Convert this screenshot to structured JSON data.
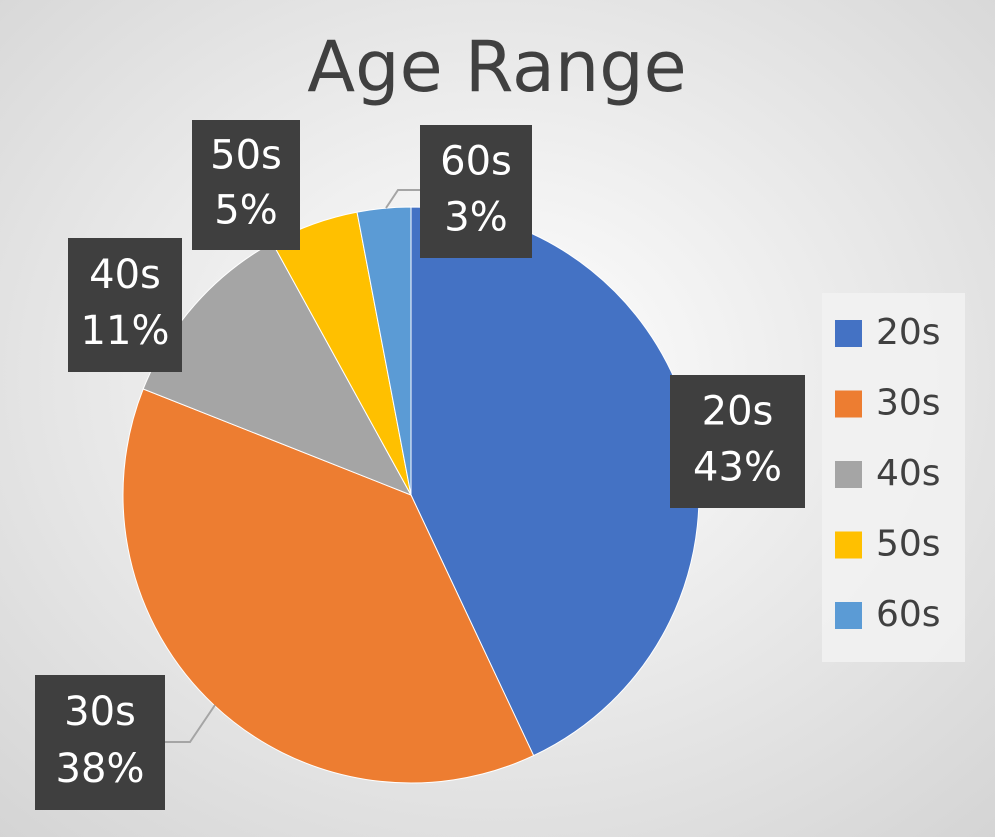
{
  "chart_data": {
    "type": "pie",
    "title": "Age Range",
    "categories": [
      "20s",
      "30s",
      "40s",
      "50s",
      "60s"
    ],
    "values": [
      43,
      38,
      11,
      5,
      3
    ],
    "value_labels": [
      "43%",
      "38%",
      "11%",
      "5%",
      "3%"
    ],
    "colors": [
      "#4472c4",
      "#ed7d31",
      "#a5a5a5",
      "#ffc000",
      "#5b9bd5"
    ],
    "legend": "right"
  }
}
